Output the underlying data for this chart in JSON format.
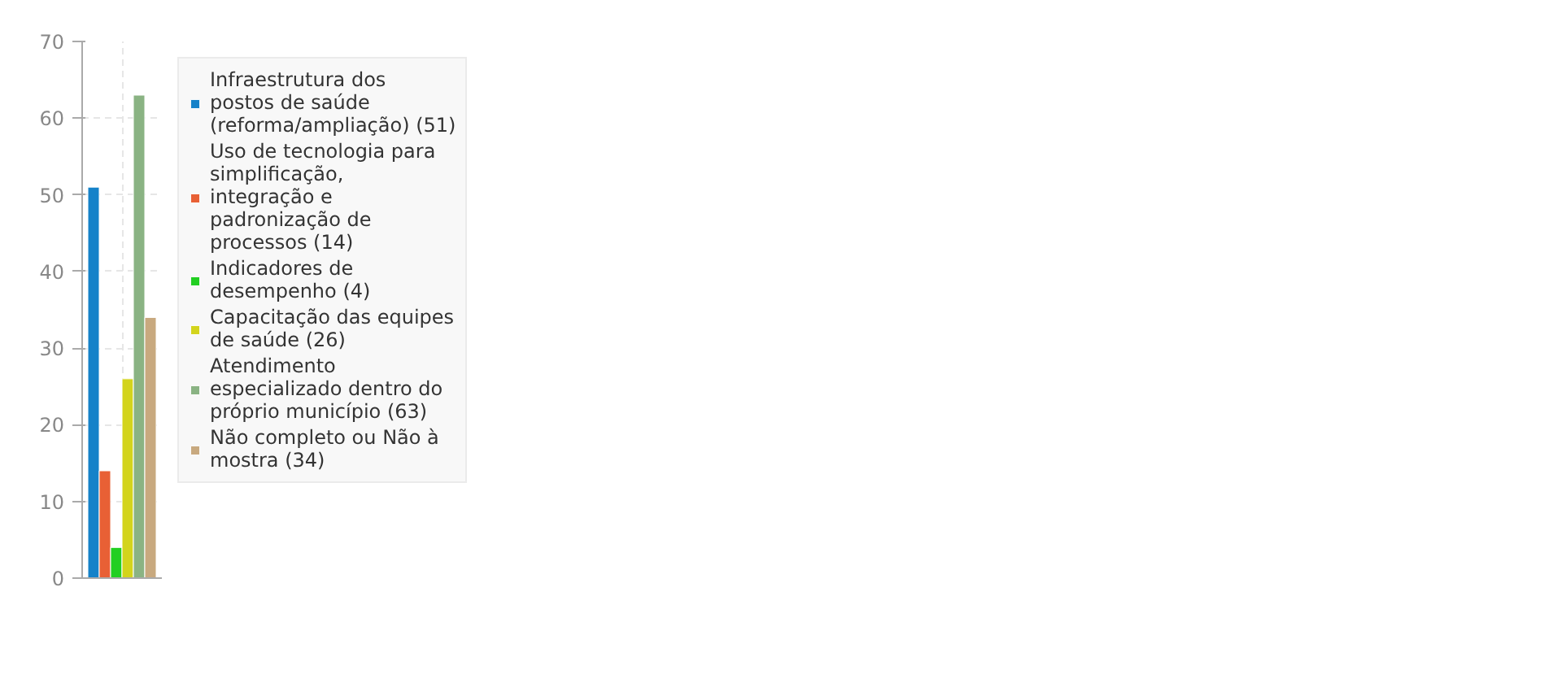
{
  "chart_data": {
    "type": "bar",
    "categories": [
      null
    ],
    "ylim": [
      0,
      70
    ],
    "yticks": [
      0,
      10,
      20,
      30,
      40,
      50,
      60,
      70
    ],
    "grid": true,
    "legend": "right",
    "series": [
      {
        "name": "Infraestrutura dos postos de saúde (reforma/ampliação) (51)",
        "color": "#1582c9",
        "values": [
          51
        ]
      },
      {
        "name": "Uso de tecnologia para simplificação, integração e padronização de processos (14)",
        "color": "#e86035",
        "values": [
          14
        ]
      },
      {
        "name": "Indicadores de desempenho (4)",
        "color": "#22cf22",
        "values": [
          4
        ]
      },
      {
        "name": "Capacitação das equipes de saúde (26)",
        "color": "#d3d41c",
        "values": [
          26
        ]
      },
      {
        "name": "Atendimento especializado dentro do próprio município (63)",
        "color": "#8ab383",
        "values": [
          63
        ]
      },
      {
        "name": "Não completo ou Não à mostra (34)",
        "color": "#c8a97f",
        "values": [
          34
        ]
      }
    ]
  }
}
